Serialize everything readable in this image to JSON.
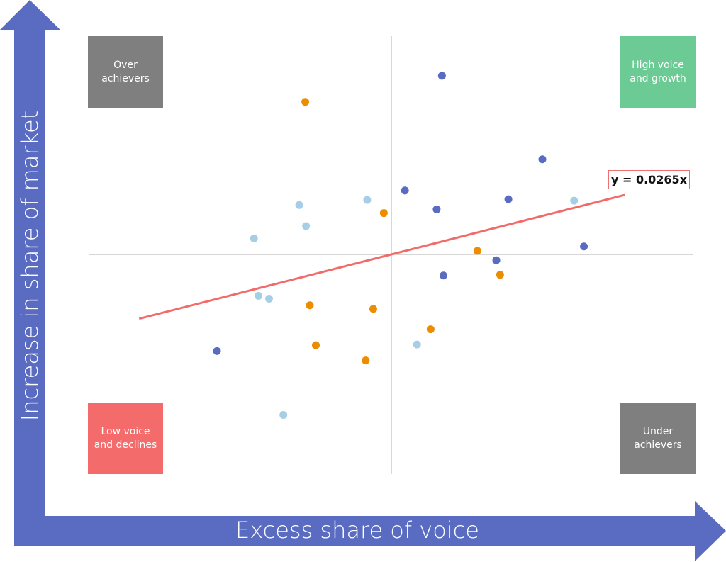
{
  "chart_data": {
    "type": "scatter",
    "xlabel": "Excess share of voice",
    "ylabel": "Increase in share of market",
    "xlim": [
      -40,
      40
    ],
    "ylim": [
      -3,
      3
    ],
    "grid": false,
    "colors": {
      "dark_blue": "#5a6bc2",
      "orange": "#ec8c00",
      "light_blue": "#a6cfe6",
      "trendline": "#f26b6b",
      "axis_arrow": "#5a6bc2"
    },
    "series": [
      {
        "color": "#5a6bc2",
        "points": [
          [
            6.7,
            2.46
          ],
          [
            20.0,
            1.31
          ],
          [
            1.8,
            0.88
          ],
          [
            6.0,
            0.62
          ],
          [
            15.5,
            0.76
          ],
          [
            25.5,
            0.11
          ],
          [
            13.9,
            -0.08
          ],
          [
            6.9,
            -0.29
          ],
          [
            -23.1,
            -1.33
          ]
        ]
      },
      {
        "color": "#ec8c00",
        "points": [
          [
            -11.4,
            2.1
          ],
          [
            -1.0,
            0.57
          ],
          [
            11.4,
            0.05
          ],
          [
            14.4,
            -0.28
          ],
          [
            -10.8,
            -0.7
          ],
          [
            -2.4,
            -0.75
          ],
          [
            5.2,
            -1.03
          ],
          [
            -10.0,
            -1.25
          ],
          [
            -3.4,
            -1.46
          ]
        ]
      },
      {
        "color": "#a6cfe6",
        "points": [
          [
            -12.2,
            0.68
          ],
          [
            -3.2,
            0.75
          ],
          [
            -11.3,
            0.39
          ],
          [
            -18.2,
            0.22
          ],
          [
            -17.6,
            -0.57
          ],
          [
            -16.2,
            -0.61
          ],
          [
            3.4,
            -1.24
          ],
          [
            -14.3,
            -2.21
          ],
          [
            24.2,
            0.74
          ]
        ]
      }
    ],
    "trendline": {
      "slope": 0.0265,
      "x_range": [
        -33.4,
        30.9
      ],
      "equation_label": "y = 0.0265x"
    },
    "quadrants": {
      "top_left": {
        "label": "Over achievers",
        "color": "#7f7f7f"
      },
      "top_right": {
        "label": "High voice and growth",
        "color": "#6ccb94"
      },
      "bottom_left": {
        "label": "Low voice and declines",
        "color": "#f46b6b"
      },
      "bottom_right": {
        "label": "Under achievers",
        "color": "#7f7f7f"
      }
    }
  }
}
